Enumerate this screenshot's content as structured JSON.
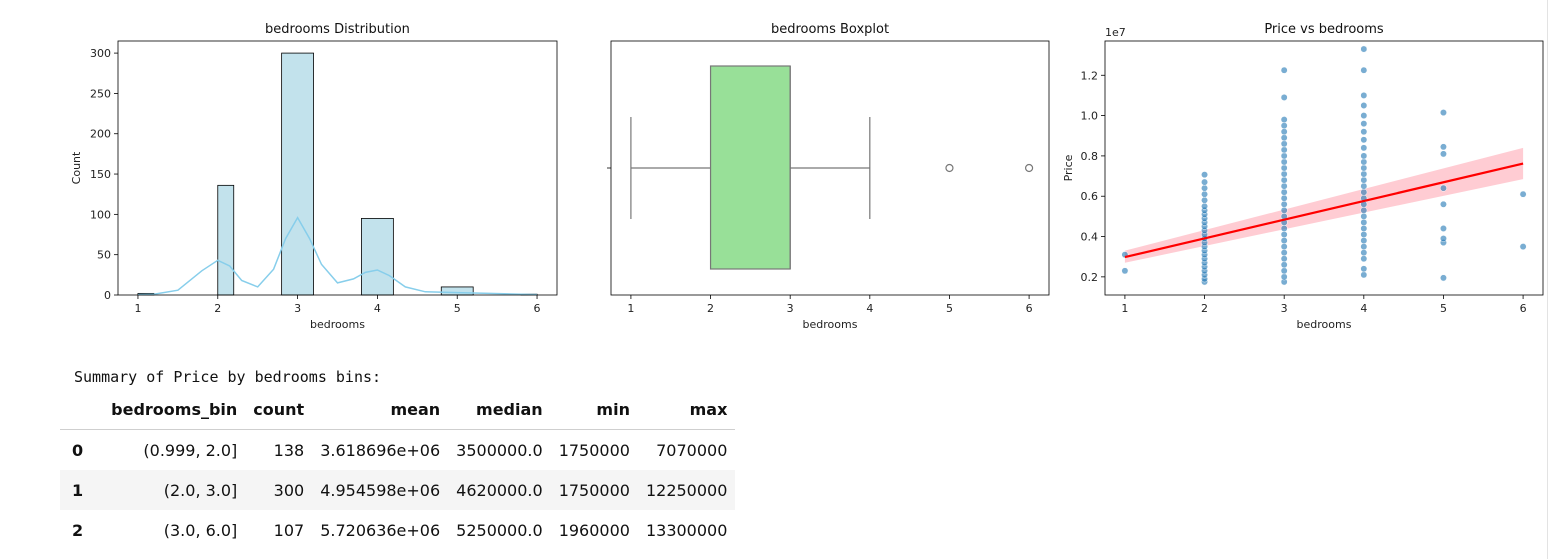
{
  "chart_data": [
    {
      "type": "bar",
      "title": "bedrooms Distribution",
      "xlabel": "bedrooms",
      "ylabel": "Count",
      "xlim": [
        0.75,
        6.25
      ],
      "ylim": [
        0,
        315
      ],
      "xticks": [
        "1",
        "2",
        "3",
        "4",
        "5",
        "6"
      ],
      "yticks": [
        "0",
        "50",
        "100",
        "150",
        "200",
        "250",
        "300"
      ],
      "bins": [
        {
          "x0": 1.0,
          "x1": 1.2,
          "count": 2
        },
        {
          "x0": 2.0,
          "x1": 2.2,
          "count": 136
        },
        {
          "x0": 2.8,
          "x1": 3.2,
          "count": 300
        },
        {
          "x0": 3.8,
          "x1": 4.2,
          "count": 95
        },
        {
          "x0": 4.8,
          "x1": 5.2,
          "count": 10
        },
        {
          "x0": 5.8,
          "x1": 6.0,
          "count": 1
        }
      ],
      "kde": [
        [
          1.0,
          0.5
        ],
        [
          1.2,
          1
        ],
        [
          1.5,
          6
        ],
        [
          1.8,
          30
        ],
        [
          2.0,
          43
        ],
        [
          2.15,
          36
        ],
        [
          2.3,
          18
        ],
        [
          2.5,
          10
        ],
        [
          2.7,
          32
        ],
        [
          2.85,
          70
        ],
        [
          3.0,
          96
        ],
        [
          3.15,
          70
        ],
        [
          3.3,
          38
        ],
        [
          3.5,
          15
        ],
        [
          3.7,
          20
        ],
        [
          3.85,
          28
        ],
        [
          4.0,
          31
        ],
        [
          4.15,
          24
        ],
        [
          4.35,
          10
        ],
        [
          4.6,
          4
        ],
        [
          5.0,
          3
        ],
        [
          5.4,
          2
        ],
        [
          5.8,
          1
        ],
        [
          6.0,
          0.5
        ]
      ],
      "colors": {
        "bar": "#add8e6",
        "kde": "#87ceeb"
      }
    },
    {
      "type": "boxplot",
      "title": "bedrooms Boxplot",
      "xlabel": "bedrooms",
      "xlim": [
        0.75,
        6.25
      ],
      "xticks": [
        "1",
        "2",
        "3",
        "4",
        "5",
        "6"
      ],
      "whisker_low": 1,
      "q1": 2,
      "median": 3,
      "q3": 3,
      "whisker_high": 4,
      "outliers": [
        5,
        6
      ],
      "colors": {
        "box": "#98e098"
      }
    },
    {
      "type": "scatter",
      "title": "Price vs bedrooms",
      "xlabel": "bedrooms",
      "ylabel": "Price",
      "offset_label": "1e7",
      "xlim": [
        0.75,
        6.25
      ],
      "ylim": [
        0.11,
        1.37
      ],
      "xticks": [
        "1",
        "2",
        "3",
        "4",
        "5",
        "6"
      ],
      "yticks": [
        "0.2",
        "0.4",
        "0.6",
        "0.8",
        "1.0",
        "1.2"
      ],
      "points": [
        {
          "x": 1,
          "y": 0.23
        },
        {
          "x": 1,
          "y": 0.31
        },
        {
          "x": 2,
          "y": 0.175
        },
        {
          "x": 2,
          "y": 0.19
        },
        {
          "x": 2,
          "y": 0.21
        },
        {
          "x": 2,
          "y": 0.23
        },
        {
          "x": 2,
          "y": 0.25
        },
        {
          "x": 2,
          "y": 0.27
        },
        {
          "x": 2,
          "y": 0.29
        },
        {
          "x": 2,
          "y": 0.31
        },
        {
          "x": 2,
          "y": 0.33
        },
        {
          "x": 2,
          "y": 0.35
        },
        {
          "x": 2,
          "y": 0.37
        },
        {
          "x": 2,
          "y": 0.39
        },
        {
          "x": 2,
          "y": 0.41
        },
        {
          "x": 2,
          "y": 0.43
        },
        {
          "x": 2,
          "y": 0.45
        },
        {
          "x": 2,
          "y": 0.47
        },
        {
          "x": 2,
          "y": 0.49
        },
        {
          "x": 2,
          "y": 0.51
        },
        {
          "x": 2,
          "y": 0.53
        },
        {
          "x": 2,
          "y": 0.55
        },
        {
          "x": 2,
          "y": 0.58
        },
        {
          "x": 2,
          "y": 0.61
        },
        {
          "x": 2,
          "y": 0.64
        },
        {
          "x": 2,
          "y": 0.67
        },
        {
          "x": 2,
          "y": 0.707
        },
        {
          "x": 3,
          "y": 0.175
        },
        {
          "x": 3,
          "y": 0.2
        },
        {
          "x": 3,
          "y": 0.23
        },
        {
          "x": 3,
          "y": 0.26
        },
        {
          "x": 3,
          "y": 0.29
        },
        {
          "x": 3,
          "y": 0.32
        },
        {
          "x": 3,
          "y": 0.35
        },
        {
          "x": 3,
          "y": 0.38
        },
        {
          "x": 3,
          "y": 0.41
        },
        {
          "x": 3,
          "y": 0.44
        },
        {
          "x": 3,
          "y": 0.47
        },
        {
          "x": 3,
          "y": 0.5
        },
        {
          "x": 3,
          "y": 0.53
        },
        {
          "x": 3,
          "y": 0.56
        },
        {
          "x": 3,
          "y": 0.59
        },
        {
          "x": 3,
          "y": 0.62
        },
        {
          "x": 3,
          "y": 0.65
        },
        {
          "x": 3,
          "y": 0.68
        },
        {
          "x": 3,
          "y": 0.71
        },
        {
          "x": 3,
          "y": 0.74
        },
        {
          "x": 3,
          "y": 0.77
        },
        {
          "x": 3,
          "y": 0.8
        },
        {
          "x": 3,
          "y": 0.83
        },
        {
          "x": 3,
          "y": 0.86
        },
        {
          "x": 3,
          "y": 0.89
        },
        {
          "x": 3,
          "y": 0.92
        },
        {
          "x": 3,
          "y": 0.95
        },
        {
          "x": 3,
          "y": 0.98
        },
        {
          "x": 3,
          "y": 1.09
        },
        {
          "x": 3,
          "y": 1.225
        },
        {
          "x": 4,
          "y": 0.21
        },
        {
          "x": 4,
          "y": 0.24
        },
        {
          "x": 4,
          "y": 0.29
        },
        {
          "x": 4,
          "y": 0.32
        },
        {
          "x": 4,
          "y": 0.35
        },
        {
          "x": 4,
          "y": 0.38
        },
        {
          "x": 4,
          "y": 0.41
        },
        {
          "x": 4,
          "y": 0.44
        },
        {
          "x": 4,
          "y": 0.47
        },
        {
          "x": 4,
          "y": 0.5
        },
        {
          "x": 4,
          "y": 0.53
        },
        {
          "x": 4,
          "y": 0.56
        },
        {
          "x": 4,
          "y": 0.59
        },
        {
          "x": 4,
          "y": 0.62
        },
        {
          "x": 4,
          "y": 0.65
        },
        {
          "x": 4,
          "y": 0.68
        },
        {
          "x": 4,
          "y": 0.71
        },
        {
          "x": 4,
          "y": 0.74
        },
        {
          "x": 4,
          "y": 0.77
        },
        {
          "x": 4,
          "y": 0.8
        },
        {
          "x": 4,
          "y": 0.84
        },
        {
          "x": 4,
          "y": 0.88
        },
        {
          "x": 4,
          "y": 0.92
        },
        {
          "x": 4,
          "y": 0.96
        },
        {
          "x": 4,
          "y": 1.0
        },
        {
          "x": 4,
          "y": 1.05
        },
        {
          "x": 4,
          "y": 1.1
        },
        {
          "x": 4,
          "y": 1.225
        },
        {
          "x": 4,
          "y": 1.33
        },
        {
          "x": 5,
          "y": 0.195
        },
        {
          "x": 5,
          "y": 0.37
        },
        {
          "x": 5,
          "y": 0.39
        },
        {
          "x": 5,
          "y": 0.44
        },
        {
          "x": 5,
          "y": 0.56
        },
        {
          "x": 5,
          "y": 0.64
        },
        {
          "x": 5,
          "y": 0.81
        },
        {
          "x": 5,
          "y": 0.845
        },
        {
          "x": 5,
          "y": 1.015
        },
        {
          "x": 6,
          "y": 0.35
        },
        {
          "x": 6,
          "y": 0.61
        }
      ],
      "regression": {
        "x": [
          1,
          6
        ],
        "y": [
          0.298,
          0.762
        ],
        "ci_low": [
          0.27,
          0.685
        ],
        "ci_high": [
          0.33,
          0.84
        ]
      },
      "colors": {
        "points": "#1f77b4",
        "line": "#ff0000",
        "ci": "#ffb6c1"
      }
    }
  ],
  "summary_title": "Summary of Price by bedrooms bins:",
  "table": {
    "columns": [
      "bedrooms_bin",
      "count",
      "mean",
      "median",
      "min",
      "max"
    ],
    "rows": [
      {
        "index": "0",
        "cells": [
          "(0.999, 2.0]",
          "138",
          "3.618696e+06",
          "3500000.0",
          "1750000",
          "7070000"
        ]
      },
      {
        "index": "1",
        "cells": [
          "(2.0, 3.0]",
          "300",
          "4.954598e+06",
          "4620000.0",
          "1750000",
          "12250000"
        ]
      },
      {
        "index": "2",
        "cells": [
          "(3.0, 6.0]",
          "107",
          "5.720636e+06",
          "5250000.0",
          "1960000",
          "13300000"
        ]
      }
    ]
  }
}
